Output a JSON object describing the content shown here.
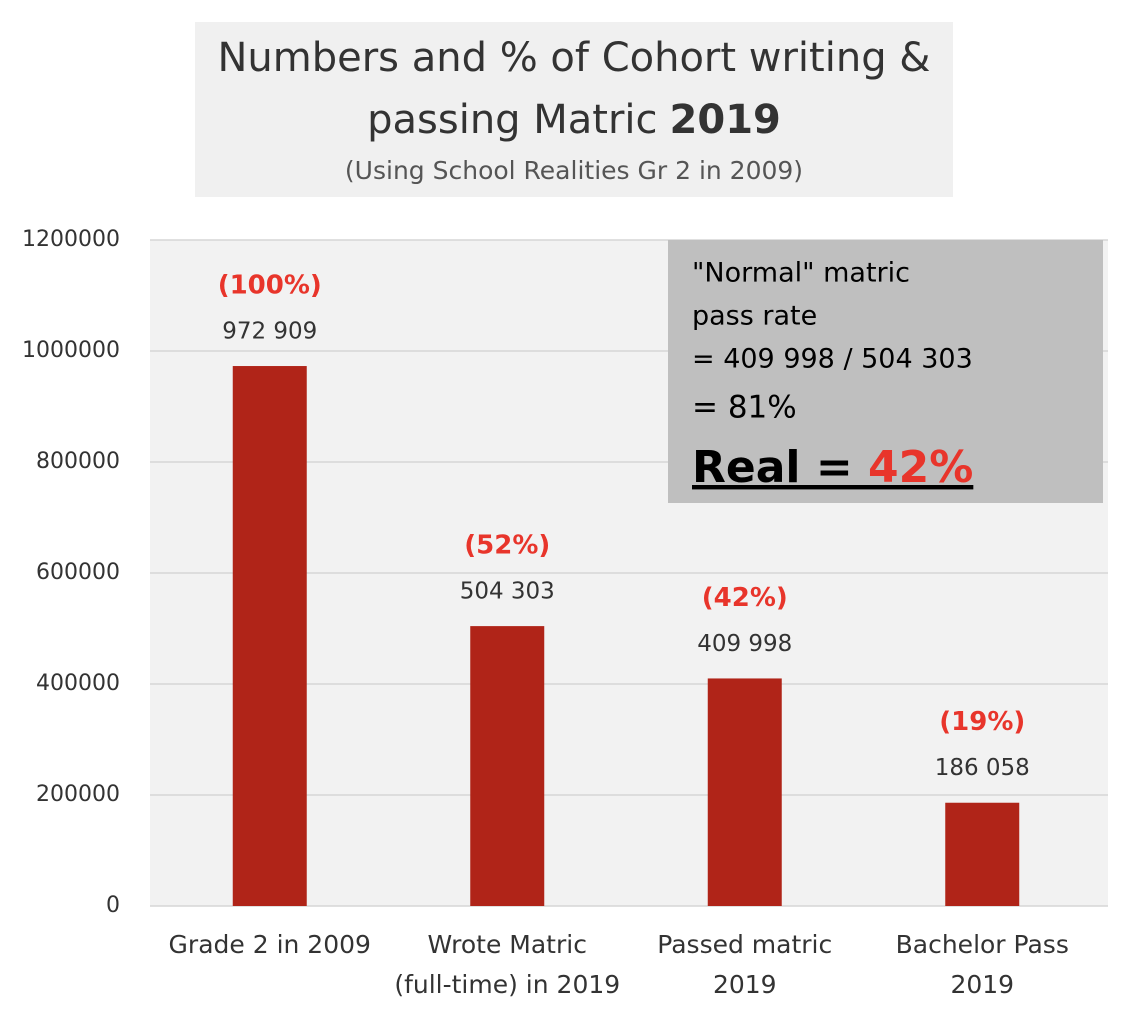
{
  "chart_data": {
    "type": "bar",
    "title": "Numbers and % of Cohort writing &\npassing Matric",
    "title_emphasis": "2019",
    "subtitle": "(Using School Realities Gr 2 in 2009)",
    "categories": [
      "Grade 2 in 2009",
      "Wrote Matric\n(full-time) in 2019",
      "Passed matric\n2019",
      "Bachelor Pass\n2019"
    ],
    "values": [
      972909,
      504303,
      409998,
      186058
    ],
    "value_labels": [
      "972 909",
      "504 303",
      "409 998",
      "186 058"
    ],
    "percent_labels": [
      "(100%)",
      "(52%)",
      "(42%)",
      "(19%)"
    ],
    "color": "#b02418",
    "ylim": [
      0,
      1200000
    ],
    "yticks": [
      0,
      200000,
      400000,
      600000,
      800000,
      1000000,
      1200000
    ],
    "grid": true,
    "annotation": {
      "lines": [
        "\"Normal\" matric",
        "pass rate",
        "= 409 998 / 504 303",
        "= 81%"
      ],
      "emphasis": "Real = ",
      "emphasis_value": "42%"
    }
  }
}
